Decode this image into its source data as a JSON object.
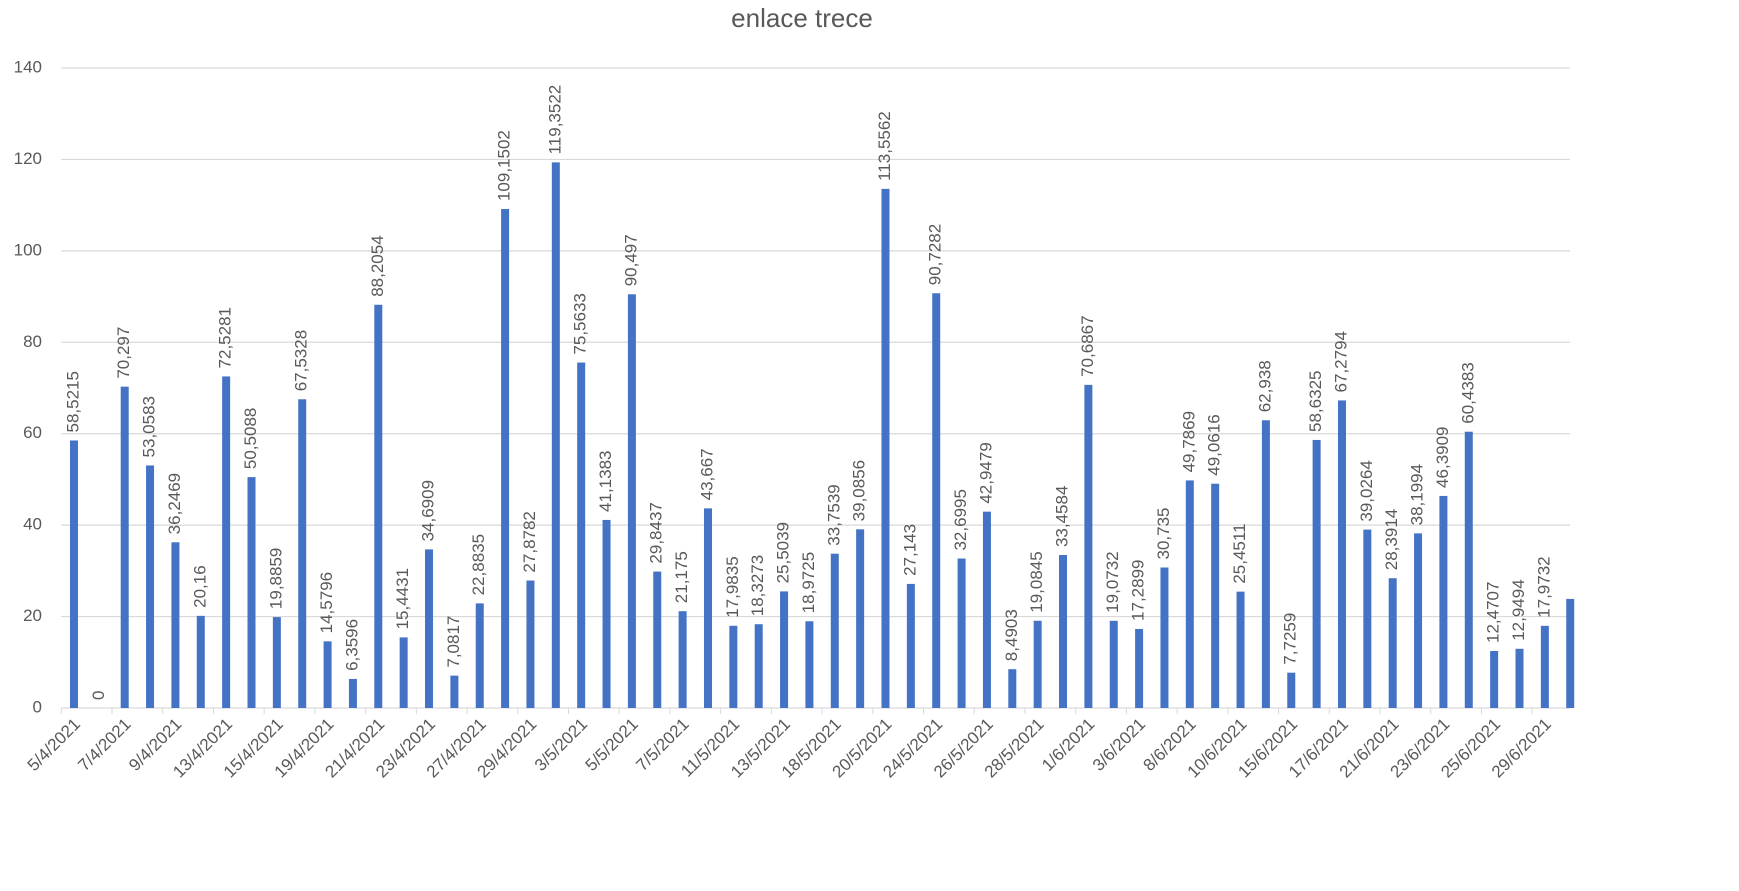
{
  "chart_data": {
    "type": "bar",
    "title": "enlace trece",
    "categories": [
      "5/4/2021",
      null,
      "7/4/2021",
      null,
      "9/4/2021",
      null,
      "13/4/2021",
      null,
      "15/4/2021",
      null,
      "19/4/2021",
      null,
      "21/4/2021",
      null,
      "23/4/2021",
      null,
      "27/4/2021",
      null,
      "29/4/2021",
      null,
      "3/5/2021",
      null,
      "5/5/2021",
      null,
      "7/5/2021",
      null,
      "11/5/2021",
      null,
      "13/5/2021",
      null,
      "18/5/2021",
      null,
      "20/5/2021",
      null,
      "24/5/2021",
      null,
      "26/5/2021",
      null,
      "28/5/2021",
      null,
      "1/6/2021",
      null,
      "3/6/2021",
      null,
      "8/6/2021",
      null,
      "10/6/2021",
      null,
      "15/6/2021",
      null,
      "17/6/2021",
      null,
      "21/6/2021",
      null,
      "23/6/2021",
      null,
      "25/6/2021",
      null,
      "29/6/2021",
      null
    ],
    "values": [
      58.5215,
      0,
      70.297,
      53.0583,
      36.2469,
      20.16,
      72.5281,
      50.5088,
      19.8859,
      67.5328,
      14.5796,
      6.3596,
      88.2054,
      15.4431,
      34.6909,
      7.0817,
      22.8835,
      109.1502,
      27.8782,
      119.3522,
      75.5633,
      41.1383,
      90.497,
      29.8437,
      21.175,
      43.667,
      17.9835,
      18.3273,
      25.5039,
      18.9725,
      33.7539,
      39.0856,
      113.5562,
      27.143,
      90.7282,
      32.6995,
      42.9479,
      8.4903,
      19.0845,
      33.4584,
      70.6867,
      19.0732,
      17.2899,
      30.735,
      49.7869,
      49.0616,
      25.4511,
      62.938,
      7.7259,
      58.6325,
      67.2794,
      39.0264,
      28.3914,
      38.1994,
      46.3909,
      60.4383,
      12.4707,
      12.9494,
      17.9732,
      23.86
    ],
    "value_labels": [
      "58,5215",
      "0",
      "70,297",
      "53,0583",
      "36,2469",
      "20,16",
      "72,5281",
      "50,5088",
      "19,8859",
      "67,5328",
      "14,5796",
      "6,3596",
      "88,2054",
      "15,4431",
      "34,6909",
      "7,0817",
      "22,8835",
      "109,1502",
      "27,8782",
      "119,3522",
      "75,5633",
      "41,1383",
      "90,497",
      "29,8437",
      "21,175",
      "43,667",
      "17,9835",
      "18,3273",
      "25,5039",
      "18,9725",
      "33,7539",
      "39,0856",
      "113,5562",
      "27,143",
      "90,7282",
      "32,6995",
      "42,9479",
      "8,4903",
      "19,0845",
      "33,4584",
      "70,6867",
      "19,0732",
      "17,2899",
      "30,735",
      "49,7869",
      "49,0616",
      "25,4511",
      "62,938",
      "7,7259",
      "58,6325",
      "67,2794",
      "39,0264",
      "28,3914",
      "38,1994",
      "46,3909",
      "60,4383",
      "12,4707",
      "12,9494",
      "17,9732",
      null
    ],
    "color": "#4472c4",
    "ylim": [
      0,
      140
    ],
    "yticks": [
      0,
      20,
      40,
      60,
      80,
      100,
      120,
      140
    ],
    "grid": true
  }
}
